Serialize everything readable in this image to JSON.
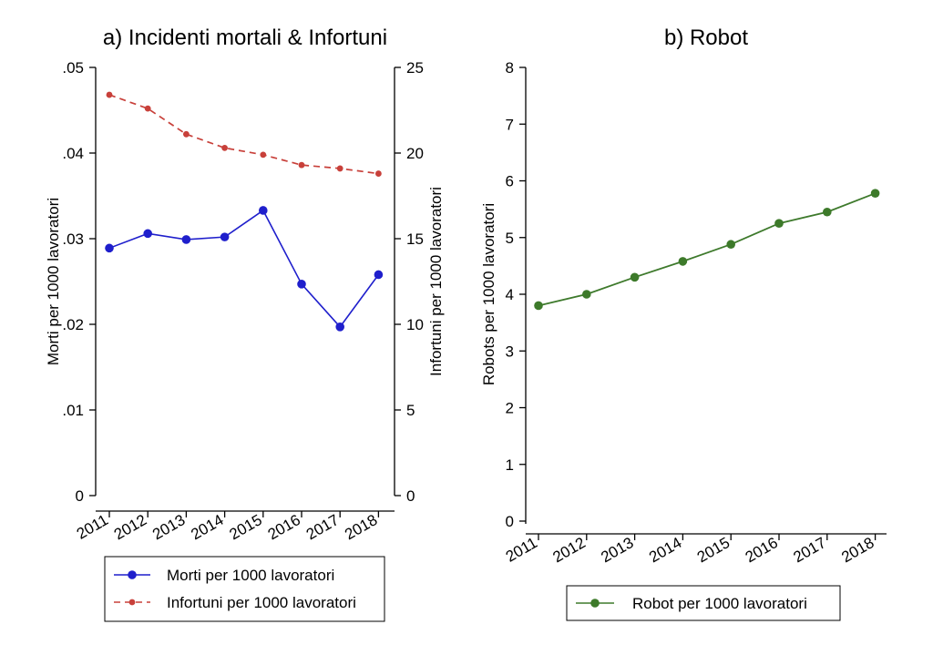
{
  "colors": {
    "morti": "#1f1fcc",
    "infortuni": "#c8403a",
    "robot": "#3e7a2c",
    "robot_marker": "#3d7a2a",
    "axis": "#000000"
  },
  "chart_data": [
    {
      "type": "line",
      "title": "a) Incidenti mortali & Infortuni",
      "categories": [
        "2011",
        "2012",
        "2013",
        "2014",
        "2015",
        "2016",
        "2017",
        "2018"
      ],
      "ylabel_left": "Morti per 1000 lavoratori",
      "ylabel_right": "Infortuni per 1000 lavoratori",
      "ylim_left": [
        0,
        0.05
      ],
      "ylim_right": [
        0,
        25
      ],
      "yticks_left": [
        {
          "value": 0,
          "label": "0"
        },
        {
          "value": 0.01,
          "label": ".01"
        },
        {
          "value": 0.02,
          "label": ".02"
        },
        {
          "value": 0.03,
          "label": ".03"
        },
        {
          "value": 0.04,
          "label": ".04"
        },
        {
          "value": 0.05,
          "label": ".05"
        }
      ],
      "yticks_right": [
        {
          "value": 0,
          "label": "0"
        },
        {
          "value": 5,
          "label": "5"
        },
        {
          "value": 10,
          "label": "10"
        },
        {
          "value": 15,
          "label": "15"
        },
        {
          "value": 20,
          "label": "20"
        },
        {
          "value": 25,
          "label": "25"
        }
      ],
      "series": [
        {
          "name": "Morti per 1000 lavoratori",
          "axis": "left",
          "style": "solid",
          "values": [
            0.0289,
            0.0306,
            0.0299,
            0.0302,
            0.0333,
            0.0247,
            0.0197,
            0.0258
          ]
        },
        {
          "name": "Infortuni per 1000 lavoratori",
          "axis": "right",
          "style": "dashed",
          "values": [
            23.4,
            22.6,
            21.1,
            20.3,
            19.9,
            19.3,
            19.1,
            18.8
          ]
        }
      ],
      "grid": false,
      "legend_position": "bottom"
    },
    {
      "type": "line",
      "title": "b) Robot",
      "categories": [
        "2011",
        "2012",
        "2013",
        "2014",
        "2015",
        "2016",
        "2017",
        "2018"
      ],
      "ylabel": "Robots per 1000 lavoratori",
      "ylim": [
        0,
        8
      ],
      "yticks": [
        {
          "value": 0,
          "label": "0"
        },
        {
          "value": 1,
          "label": "1"
        },
        {
          "value": 2,
          "label": "2"
        },
        {
          "value": 3,
          "label": "3"
        },
        {
          "value": 4,
          "label": "4"
        },
        {
          "value": 5,
          "label": "5"
        },
        {
          "value": 6,
          "label": "6"
        },
        {
          "value": 7,
          "label": "7"
        },
        {
          "value": 8,
          "label": "8"
        }
      ],
      "series": [
        {
          "name": "Robot per 1000 lavoratori",
          "style": "solid",
          "values": [
            3.8,
            4.0,
            4.3,
            4.58,
            4.88,
            5.25,
            5.45,
            5.78
          ]
        }
      ],
      "grid": false,
      "legend_position": "bottom"
    }
  ]
}
